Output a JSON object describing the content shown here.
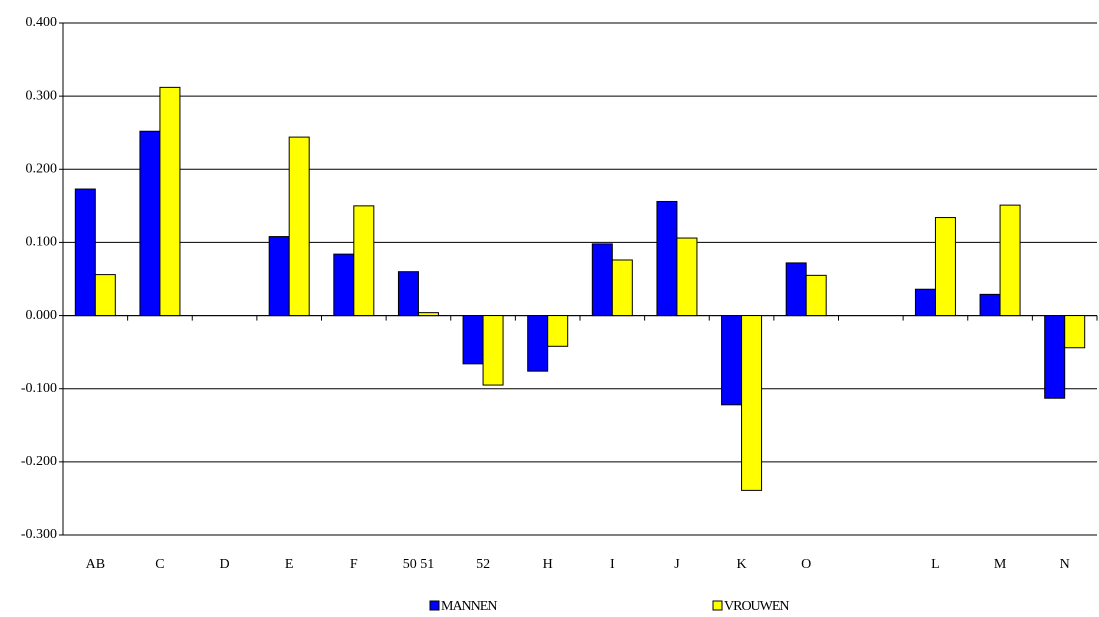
{
  "chart_data": {
    "type": "bar",
    "categories": [
      "AB",
      "C",
      "D",
      "E",
      "F",
      "50 51",
      "52",
      "H",
      "I",
      "J",
      "K",
      "O",
      null,
      "L",
      "M",
      "N"
    ],
    "series": [
      {
        "name": "MANNEN",
        "color": "#0000ff",
        "values": [
          0.173,
          0.252,
          null,
          0.108,
          0.084,
          0.06,
          -0.066,
          -0.076,
          0.098,
          0.156,
          -0.122,
          0.072,
          null,
          0.036,
          0.029,
          -0.113
        ]
      },
      {
        "name": "VROUWEN",
        "color": "#ffff00",
        "values": [
          0.056,
          0.312,
          null,
          0.244,
          0.15,
          0.004,
          -0.095,
          -0.042,
          0.076,
          0.106,
          -0.239,
          0.055,
          null,
          0.134,
          0.151,
          -0.044
        ]
      }
    ],
    "ylim": [
      -0.3,
      0.4
    ],
    "yticks": [
      {
        "value": -0.3,
        "label": "-0.300"
      },
      {
        "value": -0.2,
        "label": "-0.200"
      },
      {
        "value": -0.1,
        "label": "-0.100"
      },
      {
        "value": 0,
        "label": "0.000"
      },
      {
        "value": 0.1,
        "label": "0.100"
      },
      {
        "value": 0.2,
        "label": "0.200"
      },
      {
        "value": 0.3,
        "label": "0.300"
      },
      {
        "value": 0.4,
        "label": "0.400"
      }
    ],
    "grid": true,
    "legend": "bottom"
  }
}
